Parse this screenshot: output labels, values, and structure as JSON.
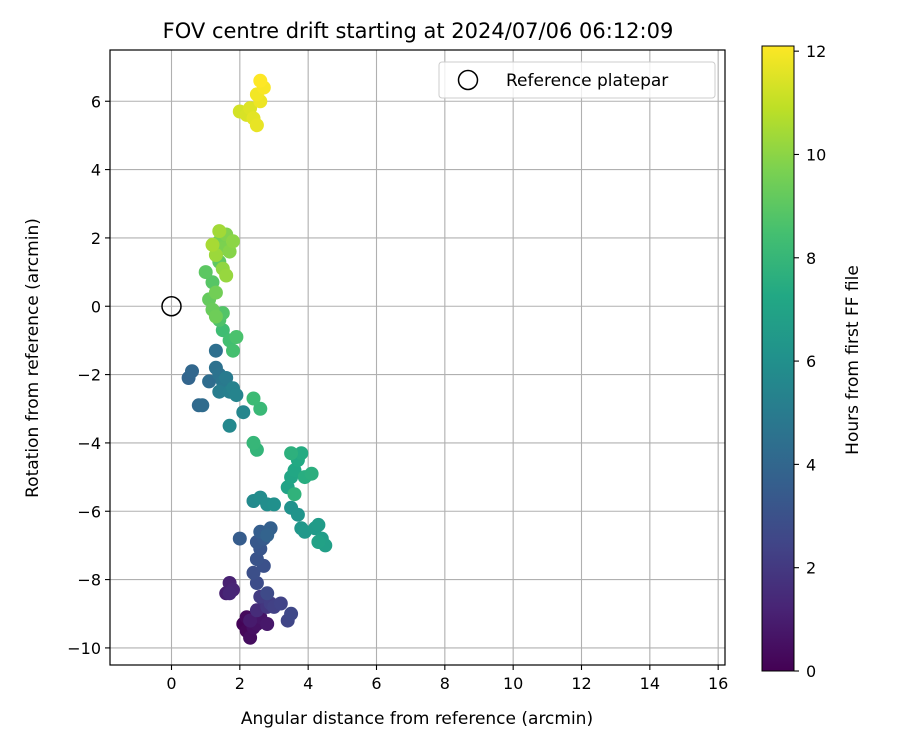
{
  "chart_data": {
    "type": "scatter",
    "title": "FOV centre drift starting at 2024/07/06 06:12:09",
    "xlabel": "Angular distance from reference (arcmin)",
    "ylabel": "Rotation from reference (arcmin)",
    "xlim": [
      -1.8,
      16.2
    ],
    "ylim": [
      -10.5,
      7.5
    ],
    "x_ticks": [
      0,
      2,
      4,
      6,
      8,
      10,
      12,
      14,
      16
    ],
    "y_ticks": [
      -10,
      -8,
      -6,
      -4,
      -2,
      0,
      2,
      4,
      6
    ],
    "grid": true,
    "legend": {
      "placement": "top-right",
      "entries": [
        "Reference platepar"
      ]
    },
    "reference_point": {
      "name": "Reference platepar",
      "x": 0,
      "y": 0
    },
    "colorbar": {
      "label": "Hours from first FF file",
      "min": 0,
      "max": 12.1,
      "ticks": [
        0,
        2,
        4,
        6,
        8,
        10,
        12
      ],
      "colormap": "viridis"
    },
    "series": [
      {
        "points": [
          [
            2.1,
            -9.3,
            0.1
          ],
          [
            2.2,
            -9.5,
            0.2
          ],
          [
            2.2,
            -9.1,
            0.3
          ],
          [
            2.3,
            -9.7,
            0.4
          ],
          [
            2.4,
            -9.4,
            0.5
          ],
          [
            2.5,
            -9.3,
            0.6
          ],
          [
            2.6,
            -9.1,
            0.7
          ],
          [
            2.8,
            -9.3,
            0.8
          ],
          [
            2.3,
            -9.2,
            0.9
          ],
          [
            1.6,
            -8.4,
            1.0
          ],
          [
            1.7,
            -8.1,
            1.1
          ],
          [
            1.8,
            -8.3,
            1.2
          ],
          [
            1.7,
            -8.4,
            1.3
          ],
          [
            2.5,
            -8.9,
            1.5
          ],
          [
            2.7,
            -8.6,
            1.7
          ],
          [
            2.8,
            -8.8,
            1.9
          ],
          [
            2.6,
            -8.5,
            2.1
          ],
          [
            2.9,
            -8.7,
            2.2
          ],
          [
            3.0,
            -8.8,
            2.3
          ],
          [
            3.2,
            -8.7,
            2.4
          ],
          [
            3.4,
            -9.2,
            2.5
          ],
          [
            3.5,
            -9.0,
            2.6
          ],
          [
            2.8,
            -8.4,
            2.7
          ],
          [
            2.5,
            -8.1,
            2.8
          ],
          [
            2.4,
            -7.8,
            2.9
          ],
          [
            2.7,
            -7.6,
            3.0
          ],
          [
            2.5,
            -7.4,
            3.1
          ],
          [
            2.6,
            -7.1,
            3.2
          ],
          [
            2.5,
            -6.9,
            3.3
          ],
          [
            2.7,
            -6.8,
            3.4
          ],
          [
            2.0,
            -6.8,
            3.5
          ],
          [
            2.6,
            -6.6,
            3.6
          ],
          [
            2.9,
            -6.5,
            3.7
          ],
          [
            2.8,
            -6.7,
            3.8
          ],
          [
            0.5,
            -2.1,
            3.9
          ],
          [
            0.6,
            -1.9,
            4.0
          ],
          [
            0.8,
            -2.9,
            4.1
          ],
          [
            0.9,
            -2.9,
            4.2
          ],
          [
            1.1,
            -2.2,
            4.3
          ],
          [
            1.3,
            -1.3,
            4.4
          ],
          [
            1.3,
            -1.8,
            4.5
          ],
          [
            1.4,
            -2.0,
            4.6
          ],
          [
            1.5,
            -2.2,
            4.7
          ],
          [
            1.5,
            -2.4,
            4.8
          ],
          [
            1.6,
            -2.3,
            4.9
          ],
          [
            1.6,
            -2.1,
            5.0
          ],
          [
            1.4,
            -2.5,
            5.1
          ],
          [
            1.7,
            -2.5,
            5.2
          ],
          [
            1.8,
            -2.4,
            5.3
          ],
          [
            1.9,
            -2.6,
            5.4
          ],
          [
            2.1,
            -3.1,
            5.5
          ],
          [
            1.7,
            -3.5,
            5.6
          ],
          [
            2.4,
            -5.7,
            5.7
          ],
          [
            2.6,
            -5.6,
            5.8
          ],
          [
            2.8,
            -5.8,
            5.9
          ],
          [
            3.0,
            -5.8,
            6.0
          ],
          [
            3.5,
            -5.9,
            6.1
          ],
          [
            3.7,
            -6.1,
            6.2
          ],
          [
            3.8,
            -6.5,
            6.3
          ],
          [
            3.9,
            -6.6,
            6.4
          ],
          [
            4.2,
            -6.5,
            6.5
          ],
          [
            4.3,
            -6.4,
            6.6
          ],
          [
            4.4,
            -6.8,
            6.7
          ],
          [
            4.5,
            -7.0,
            6.8
          ],
          [
            4.3,
            -6.9,
            6.9
          ],
          [
            3.4,
            -5.3,
            7.0
          ],
          [
            3.5,
            -5.0,
            7.1
          ],
          [
            3.6,
            -4.8,
            7.2
          ],
          [
            3.7,
            -4.5,
            7.3
          ],
          [
            3.8,
            -4.3,
            7.4
          ],
          [
            3.9,
            -5.0,
            7.5
          ],
          [
            4.1,
            -4.9,
            7.6
          ],
          [
            3.5,
            -4.3,
            7.7
          ],
          [
            3.6,
            -5.5,
            7.8
          ],
          [
            2.5,
            -4.2,
            7.9
          ],
          [
            2.4,
            -4.0,
            8.0
          ],
          [
            2.6,
            -3.0,
            8.1
          ],
          [
            2.4,
            -2.7,
            8.2
          ],
          [
            1.5,
            -0.7,
            8.3
          ],
          [
            1.7,
            -1.0,
            8.4
          ],
          [
            1.8,
            -1.3,
            8.5
          ],
          [
            1.9,
            -0.9,
            8.6
          ],
          [
            1.4,
            -0.4,
            8.7
          ],
          [
            1.5,
            -0.2,
            8.8
          ],
          [
            1.2,
            0.7,
            8.9
          ],
          [
            1.0,
            1.0,
            9.0
          ],
          [
            1.4,
            1.3,
            9.1
          ],
          [
            1.1,
            0.2,
            9.2
          ],
          [
            1.2,
            -0.1,
            9.3
          ],
          [
            1.3,
            -0.3,
            9.4
          ],
          [
            1.3,
            0.4,
            9.5
          ],
          [
            1.4,
            1.9,
            9.6
          ],
          [
            1.5,
            1.7,
            9.7
          ],
          [
            1.6,
            2.1,
            9.8
          ],
          [
            1.7,
            1.6,
            9.9
          ],
          [
            1.8,
            1.9,
            10.0
          ],
          [
            1.5,
            1.1,
            10.1
          ],
          [
            1.6,
            0.9,
            10.2
          ],
          [
            1.3,
            1.5,
            10.3
          ],
          [
            1.4,
            2.2,
            10.4
          ],
          [
            1.2,
            1.8,
            10.5
          ],
          [
            2.0,
            5.7,
            11.3
          ],
          [
            2.2,
            5.6,
            11.4
          ],
          [
            2.3,
            5.8,
            11.5
          ],
          [
            2.4,
            5.5,
            11.6
          ],
          [
            2.5,
            5.3,
            11.7
          ],
          [
            2.6,
            6.0,
            11.8
          ],
          [
            2.5,
            6.2,
            11.9
          ],
          [
            2.7,
            6.4,
            12.0
          ],
          [
            2.6,
            6.6,
            12.1
          ]
        ]
      }
    ]
  }
}
